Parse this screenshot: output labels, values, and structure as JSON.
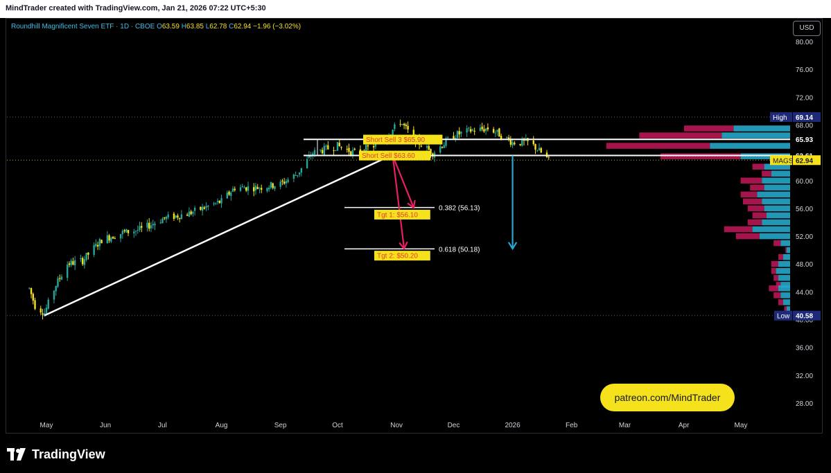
{
  "header": {
    "created_by": "MindTrader created with TradingView.com, Jan 21, 2026 07:22 UTC+5:30"
  },
  "legend": {
    "symbol": "Roundhill Magnificent Seven ETF · 1D · CBOE",
    "o_label": "O",
    "o_value": "63.59",
    "h_label": "H",
    "h_value": "63.85",
    "l_label": "L",
    "l_value": "62.78",
    "c_label": "C",
    "c_value": "62.94",
    "change": "−1.96 (−3.02%)"
  },
  "currency_button": "USD",
  "watermark_text": "patreon.com/MindTrader",
  "brand": "TradingView",
  "colors": {
    "background": "#000000",
    "up_candle": "#26a69a",
    "down_candle": "#f5e21c",
    "trendline": "#ffffff",
    "short_arrow": "#e91e63",
    "target_arrow": "#26a6d1",
    "label_yellow": "#f5e21c",
    "label_text": "#e53935",
    "volume_profile_up": "#26a6c9",
    "volume_profile_down": "#c2185b"
  },
  "chart_data": {
    "type": "candlestick",
    "title": "Roundhill Magnificent Seven ETF · 1D · CBOE",
    "x_axis_labels": [
      "May",
      "Jun",
      "Jul",
      "Aug",
      "Sep",
      "Oct",
      "Nov",
      "Dec",
      "2026",
      "Feb",
      "Mar",
      "Apr",
      "May"
    ],
    "y_axis_labels": [
      "80.00",
      "76.00",
      "72.00",
      "68.00",
      "64.00",
      "60.00",
      "56.00",
      "52.00",
      "48.00",
      "44.00",
      "40.00",
      "36.00",
      "32.00",
      "28.00"
    ],
    "ylim": [
      26.5,
      82
    ],
    "price_path": [
      {
        "date": "2025-04-22",
        "price": 44.5
      },
      {
        "date": "2025-04-25",
        "price": 42.0
      },
      {
        "date": "2025-04-30",
        "price": 41.0
      },
      {
        "date": "2025-05-06",
        "price": 45.0
      },
      {
        "date": "2025-05-12",
        "price": 48.0
      },
      {
        "date": "2025-05-20",
        "price": 48.5
      },
      {
        "date": "2025-05-30",
        "price": 51.5
      },
      {
        "date": "2025-06-10",
        "price": 52.5
      },
      {
        "date": "2025-06-20",
        "price": 53.0
      },
      {
        "date": "2025-07-01",
        "price": 54.5
      },
      {
        "date": "2025-07-15",
        "price": 55.3
      },
      {
        "date": "2025-08-01",
        "price": 57.0
      },
      {
        "date": "2025-08-08",
        "price": 59.0
      },
      {
        "date": "2025-08-20",
        "price": 59.0
      },
      {
        "date": "2025-09-01",
        "price": 59.5
      },
      {
        "date": "2025-09-10",
        "price": 61.0
      },
      {
        "date": "2025-09-18",
        "price": 64.0
      },
      {
        "date": "2025-10-01",
        "price": 65.0
      },
      {
        "date": "2025-10-10",
        "price": 64.0
      },
      {
        "date": "2025-10-20",
        "price": 65.0
      },
      {
        "date": "2025-10-29",
        "price": 67.0
      },
      {
        "date": "2025-11-03",
        "price": 68.5
      },
      {
        "date": "2025-11-10",
        "price": 66.0
      },
      {
        "date": "2025-11-20",
        "price": 64.0
      },
      {
        "date": "2025-12-01",
        "price": 66.5
      },
      {
        "date": "2025-12-10",
        "price": 67.2
      },
      {
        "date": "2025-12-20",
        "price": 67.5
      },
      {
        "date": "2026-01-01",
        "price": 65.5
      },
      {
        "date": "2026-01-10",
        "price": 65.5
      },
      {
        "date": "2026-01-16",
        "price": 64.0
      },
      {
        "date": "2026-01-20",
        "price": 62.94
      }
    ],
    "price_labels": [
      {
        "label": "High",
        "value": "69.14"
      },
      {
        "label": "",
        "value": "65.93"
      },
      {
        "label": "",
        "value": "63.61"
      },
      {
        "label": "MAGS",
        "value": "62.94"
      },
      {
        "label": "Low",
        "value": "40.58"
      }
    ],
    "horizontal_lines": [
      65.93,
      63.61
    ],
    "fib_levels": [
      {
        "label": "0.382 (56.13)",
        "value": 56.13
      },
      {
        "label": "0.618 (50.18)",
        "value": 50.18
      }
    ],
    "annotations": [
      {
        "text": "Short Sell 3 $65.90",
        "value": 65.9
      },
      {
        "text": "Short Sell $63.60",
        "value": 63.6
      },
      {
        "text": "Tgt 1: $56.10",
        "value": 56.1
      },
      {
        "text": "Tgt 2: $50.20",
        "value": 50.2
      }
    ],
    "trendline": {
      "from": {
        "date": "2025-04-30",
        "price": 40.6
      },
      "to": {
        "date": "2025-10-29",
        "price": 63.6
      }
    },
    "arrows": [
      {
        "color": "pink",
        "from": {
          "date": "2025-10-30",
          "price": 63.6
        },
        "to": {
          "date": "2025-11-10",
          "price": 56.1
        }
      },
      {
        "color": "pink",
        "from": {
          "date": "2025-10-30",
          "price": 63.6
        },
        "to": {
          "date": "2025-11-05",
          "price": 50.2
        }
      },
      {
        "color": "blue",
        "from": {
          "date": "2026-01-01",
          "price": 63.6
        },
        "to": {
          "date": "2026-01-01",
          "price": 50.2
        }
      }
    ],
    "volume_profile": [
      {
        "price": 67.5,
        "up": 0.48,
        "down": 0.42
      },
      {
        "price": 66.5,
        "up": 0.58,
        "down": 0.7
      },
      {
        "price": 65.0,
        "up": 0.68,
        "down": 0.88
      },
      {
        "price": 63.5,
        "up": 0.42,
        "down": 0.68
      },
      {
        "price": 62.0,
        "up": 0.22,
        "down": 0.1
      },
      {
        "price": 61.0,
        "up": 0.16,
        "down": 0.08
      },
      {
        "price": 60.0,
        "up": 0.24,
        "down": 0.18
      },
      {
        "price": 59.0,
        "up": 0.22,
        "down": 0.12
      },
      {
        "price": 58.0,
        "up": 0.28,
        "down": 0.14
      },
      {
        "price": 57.0,
        "up": 0.24,
        "down": 0.16
      },
      {
        "price": 56.0,
        "up": 0.22,
        "down": 0.14
      },
      {
        "price": 55.0,
        "up": 0.2,
        "down": 0.12
      },
      {
        "price": 54.0,
        "up": 0.24,
        "down": 0.12
      },
      {
        "price": 53.0,
        "up": 0.32,
        "down": 0.24
      },
      {
        "price": 52.0,
        "up": 0.26,
        "down": 0.2
      },
      {
        "price": 51.0,
        "up": 0.08,
        "down": 0.06
      },
      {
        "price": 50.0,
        "up": 0.03,
        "down": 0.01
      },
      {
        "price": 49.0,
        "up": 0.06,
        "down": 0.04
      },
      {
        "price": 48.0,
        "up": 0.1,
        "down": 0.06
      },
      {
        "price": 47.0,
        "up": 0.12,
        "down": 0.04
      },
      {
        "price": 46.0,
        "up": 0.1,
        "down": 0.04
      },
      {
        "price": 45.0,
        "up": 0.08,
        "down": 0.04
      },
      {
        "price": 44.5,
        "up": 0.1,
        "down": 0.08
      },
      {
        "price": 43.5,
        "up": 0.08,
        "down": 0.06
      },
      {
        "price": 42.5,
        "up": 0.06,
        "down": 0.04
      },
      {
        "price": 41.5,
        "up": 0.03,
        "down": 0.02
      }
    ]
  }
}
